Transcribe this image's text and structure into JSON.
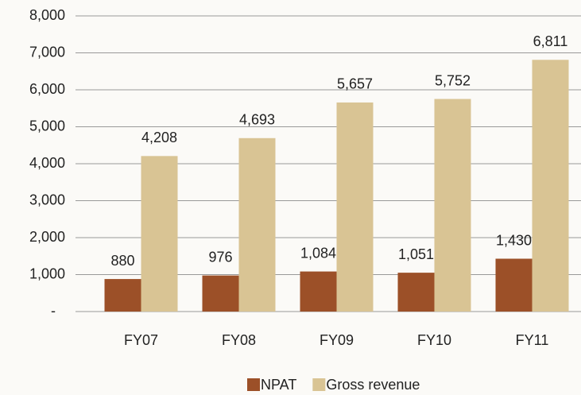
{
  "chart_data": {
    "type": "bar",
    "categories": [
      "FY07",
      "FY08",
      "FY09",
      "FY10",
      "FY11"
    ],
    "series": [
      {
        "name": "NPAT",
        "color": "#9c5028",
        "values": [
          880,
          976,
          1084,
          1051,
          1430
        ],
        "value_labels": [
          "880",
          "976",
          "1,084",
          "1,051",
          "1,430"
        ]
      },
      {
        "name": "Gross revenue",
        "color": "#d9c494",
        "values": [
          4208,
          4693,
          5657,
          5752,
          6811
        ],
        "value_labels": [
          "4,208",
          "4,693",
          "5,657",
          "5,752",
          "6,811"
        ]
      }
    ],
    "ylim": [
      0,
      8000
    ],
    "yticks": [
      {
        "value": 0,
        "label": "-"
      },
      {
        "value": 1000,
        "label": "1,000"
      },
      {
        "value": 2000,
        "label": "2,000"
      },
      {
        "value": 3000,
        "label": "3,000"
      },
      {
        "value": 4000,
        "label": "4,000"
      },
      {
        "value": 5000,
        "label": "5,000"
      },
      {
        "value": 6000,
        "label": "6,000"
      },
      {
        "value": 7000,
        "label": "7,000"
      },
      {
        "value": 8000,
        "label": "8,000"
      }
    ],
    "grid": true,
    "legend": "bottom"
  }
}
